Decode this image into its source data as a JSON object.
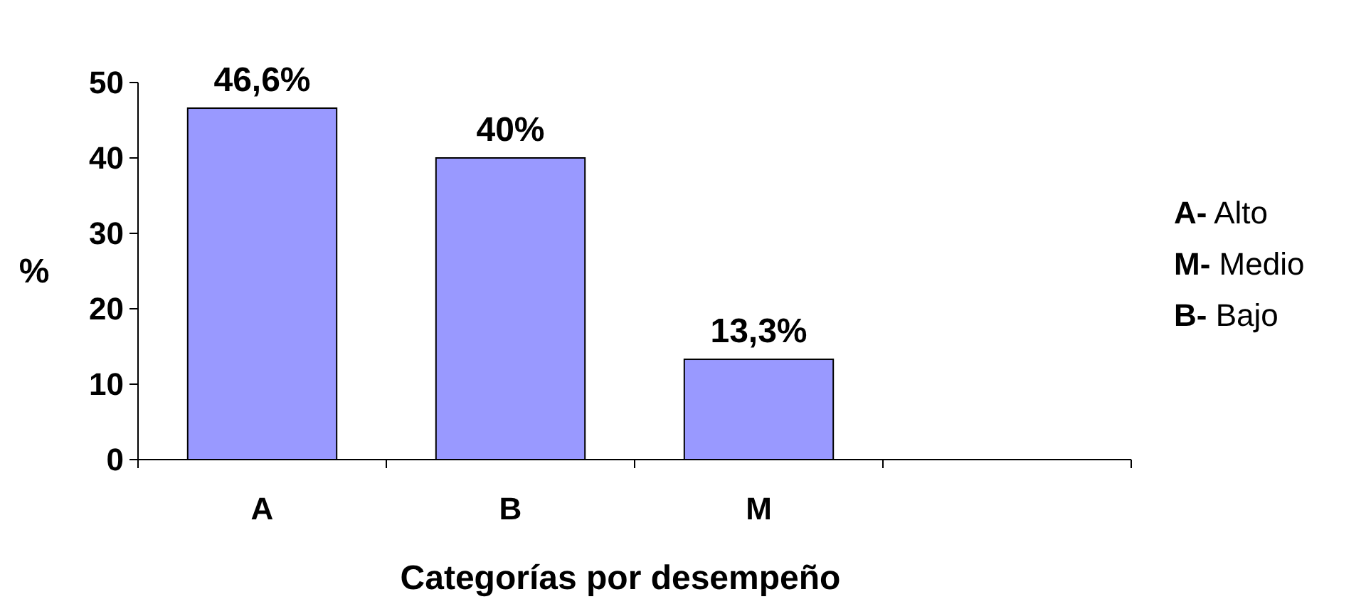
{
  "chart_data": {
    "type": "bar",
    "xlabel": "Categorías por desempeño",
    "ylabel": "%",
    "categories": [
      "A",
      "B",
      "M",
      null
    ],
    "values": [
      46.6,
      40,
      13.3,
      null
    ],
    "value_labels": [
      "46,6%",
      "40%",
      "13,3%",
      null
    ],
    "color": "#9999ff",
    "ylim": [
      0,
      50
    ],
    "yticks": [
      0,
      10,
      20,
      30,
      40,
      50
    ],
    "grid": false,
    "annotations": [
      "A- Alto",
      "M- Medio",
      "B- Bajo"
    ]
  }
}
